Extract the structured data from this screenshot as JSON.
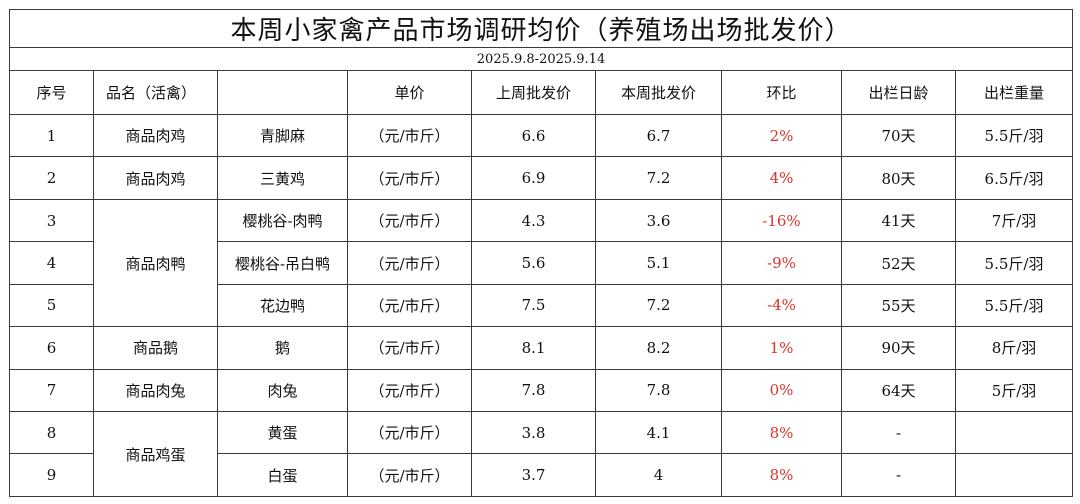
{
  "title": "本周小家禽产品市场调研均价（养殖场出场批发价）",
  "date_range": "2025.9.8-2025.9.14",
  "headers": {
    "index": "序号",
    "category": "品名（活禽）",
    "unit": "单价",
    "last_week": "上周批发价",
    "this_week": "本周批发价",
    "change": "环比",
    "age": "出栏日龄",
    "weight": "出栏重量"
  },
  "rows": [
    {
      "index": "1",
      "category": "商品肉鸡",
      "variety": "青脚麻",
      "unit": "（元/市斤）",
      "last_week": "6.6",
      "this_week": "6.7",
      "change": "2%",
      "age": "70天",
      "weight": "5.5斤/羽"
    },
    {
      "index": "2",
      "category": "商品肉鸡",
      "variety": "三黄鸡",
      "unit": "（元/市斤）",
      "last_week": "6.9",
      "this_week": "7.2",
      "change": "4%",
      "age": "80天",
      "weight": "6.5斤/羽"
    },
    {
      "index": "3",
      "category": "商品肉鸭",
      "variety": "樱桃谷-肉鸭",
      "unit": "（元/市斤）",
      "last_week": "4.3",
      "this_week": "3.6",
      "change": "-16%",
      "age": "41天",
      "weight": "7斤/羽"
    },
    {
      "index": "4",
      "category": "商品肉鸭",
      "variety": "樱桃谷-吊白鸭",
      "unit": "（元/市斤）",
      "last_week": "5.6",
      "this_week": "5.1",
      "change": "-9%",
      "age": "52天",
      "weight": "5.5斤/羽"
    },
    {
      "index": "5",
      "category": "商品肉鸭",
      "variety": "花边鸭",
      "unit": "（元/市斤）",
      "last_week": "7.5",
      "this_week": "7.2",
      "change": "-4%",
      "age": "55天",
      "weight": "5.5斤/羽"
    },
    {
      "index": "6",
      "category": "商品鹅",
      "variety": "鹅",
      "unit": "（元/市斤）",
      "last_week": "8.1",
      "this_week": "8.2",
      "change": "1%",
      "age": "90天",
      "weight": "8斤/羽"
    },
    {
      "index": "7",
      "category": "商品肉兔",
      "variety": "肉兔",
      "unit": "（元/市斤）",
      "last_week": "7.8",
      "this_week": "7.8",
      "change": "0%",
      "age": "64天",
      "weight": "5斤/羽"
    },
    {
      "index": "8",
      "category": "商品鸡蛋",
      "variety": "黄蛋",
      "unit": "（元/市斤）",
      "last_week": "3.8",
      "this_week": "4.1",
      "change": "8%",
      "age": "-",
      "weight": ""
    },
    {
      "index": "9",
      "category": "商品鸡蛋",
      "variety": "白蛋",
      "unit": "（元/市斤）",
      "last_week": "3.7",
      "this_week": "4",
      "change": "8%",
      "age": "-",
      "weight": ""
    }
  ],
  "colors": {
    "change_text": "#d9342b",
    "border": "#3a3a3a"
  }
}
